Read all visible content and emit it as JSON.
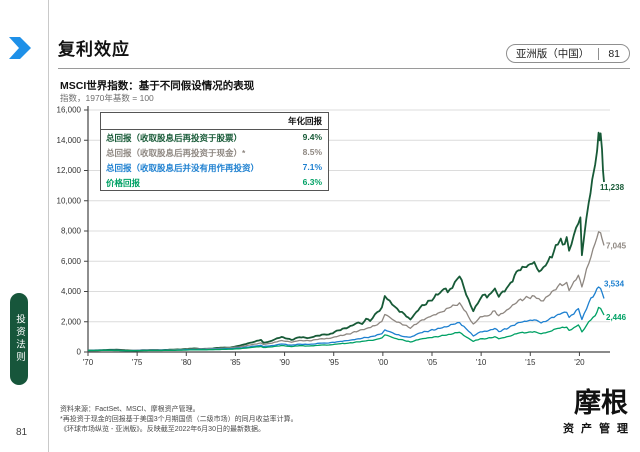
{
  "header": {
    "title": "复利效应",
    "edition": "亚洲版（中国）",
    "page": "81"
  },
  "sidebar": {
    "section_label": "投资法则"
  },
  "page": {
    "number_left": "81"
  },
  "colors": {
    "accent_blue": "#1e90e8",
    "pill_green": "#17563b",
    "grid": "#dcdcdc",
    "axis": "#444444"
  },
  "chart_data": {
    "type": "line",
    "title": "MSCI世界指数：基于不同假设情况的表现",
    "subtitle": "指数，1970年基数 = 100",
    "legend_header": "年化回报",
    "x_range": [
      1970,
      2022.5
    ],
    "y_range": [
      0,
      16000
    ],
    "grid": true,
    "y_ticks": [
      {
        "value": 0,
        "label": "0"
      },
      {
        "value": 2000,
        "label": "2,000"
      },
      {
        "value": 4000,
        "label": "4,000"
      },
      {
        "value": 6000,
        "label": "6,000"
      },
      {
        "value": 8000,
        "label": "8,000"
      },
      {
        "value": 10000,
        "label": "10,000"
      },
      {
        "value": 12000,
        "label": "12,000"
      },
      {
        "value": 14000,
        "label": "14,000"
      },
      {
        "value": 16000,
        "label": "16,000"
      }
    ],
    "x_ticks": [
      {
        "year": 1970,
        "label": "'70"
      },
      {
        "year": 1975,
        "label": "'75"
      },
      {
        "year": 1980,
        "label": "'80"
      },
      {
        "year": 1985,
        "label": "'85"
      },
      {
        "year": 1990,
        "label": "'90"
      },
      {
        "year": 1995,
        "label": "'95"
      },
      {
        "year": 2000,
        "label": "'00"
      },
      {
        "year": 2005,
        "label": "'05"
      },
      {
        "year": 2010,
        "label": "'10"
      },
      {
        "year": 2015,
        "label": "'15"
      },
      {
        "year": 2020,
        "label": "'20"
      }
    ],
    "series": [
      {
        "name": "总回报（收取股息后再投资于股票）",
        "annualized_return": "9.4%",
        "color": "#175a37",
        "end": {
          "label": "11,238",
          "value": 11238,
          "dx": -4,
          "dy": 8
        },
        "points": [
          [
            1970,
            100
          ],
          [
            1971,
            115
          ],
          [
            1972,
            140
          ],
          [
            1972.9,
            155
          ],
          [
            1974,
            110
          ],
          [
            1974.8,
            85
          ],
          [
            1975.5,
            120
          ],
          [
            1976.5,
            132
          ],
          [
            1977.5,
            128
          ],
          [
            1978.5,
            152
          ],
          [
            1979.5,
            175
          ],
          [
            1980.8,
            235
          ],
          [
            1981.5,
            200
          ],
          [
            1982.5,
            228
          ],
          [
            1983.5,
            285
          ],
          [
            1984.5,
            298
          ],
          [
            1985.5,
            430
          ],
          [
            1986.5,
            610
          ],
          [
            1987.6,
            800
          ],
          [
            1987.85,
            620
          ],
          [
            1988.5,
            700
          ],
          [
            1989.7,
            1000
          ],
          [
            1990.7,
            800
          ],
          [
            1991.5,
            980
          ],
          [
            1992.5,
            930
          ],
          [
            1993.8,
            1150
          ],
          [
            1994.5,
            1160
          ],
          [
            1995.5,
            1430
          ],
          [
            1996.5,
            1640
          ],
          [
            1997.5,
            1950
          ],
          [
            1997.9,
            1850
          ],
          [
            1998.3,
            2200
          ],
          [
            1998.7,
            2050
          ],
          [
            1999.2,
            2500
          ],
          [
            1999.9,
            2950
          ],
          [
            2000.2,
            3700
          ],
          [
            2000.7,
            3400
          ],
          [
            2001.2,
            3000
          ],
          [
            2001.7,
            2650
          ],
          [
            2002.2,
            2500
          ],
          [
            2002.8,
            2150
          ],
          [
            2003.8,
            2950
          ],
          [
            2004.8,
            3400
          ],
          [
            2005.8,
            3900
          ],
          [
            2006.4,
            4200
          ],
          [
            2006.6,
            3950
          ],
          [
            2007.8,
            5000
          ],
          [
            2008.7,
            3500
          ],
          [
            2009.2,
            2700
          ],
          [
            2009.9,
            3500
          ],
          [
            2010.4,
            3800
          ],
          [
            2010.6,
            3600
          ],
          [
            2011.4,
            4200
          ],
          [
            2011.8,
            3650
          ],
          [
            2012.8,
            4400
          ],
          [
            2013.8,
            5400
          ],
          [
            2014.8,
            5750
          ],
          [
            2015.4,
            5950
          ],
          [
            2015.7,
            5500
          ],
          [
            2016.1,
            5400
          ],
          [
            2016.8,
            6000
          ],
          [
            2017.8,
            7100
          ],
          [
            2018.1,
            7500
          ],
          [
            2018.3,
            7100
          ],
          [
            2018.7,
            7600
          ],
          [
            2018.95,
            6700
          ],
          [
            2019.9,
            8500
          ],
          [
            2020.1,
            8900
          ],
          [
            2020.25,
            6400
          ],
          [
            2020.7,
            8800
          ],
          [
            2020.95,
            9900
          ],
          [
            2021.3,
            11400
          ],
          [
            2021.6,
            12400
          ],
          [
            2021.8,
            13300
          ],
          [
            2021.95,
            14500
          ],
          [
            2022.05,
            14000
          ],
          [
            2022.15,
            14450
          ],
          [
            2022.3,
            13400
          ],
          [
            2022.4,
            12000
          ],
          [
            2022.5,
            11238
          ]
        ]
      },
      {
        "name": "总回报（收取股息后再投资于现金）*",
        "annualized_return": "8.5%",
        "color": "#8e8781",
        "end": {
          "label": "7,045",
          "value": 7045,
          "dx": 2,
          "dy": 3
        },
        "points": [
          [
            1970,
            100
          ],
          [
            1972,
            120
          ],
          [
            1974,
            100
          ],
          [
            1975.5,
            112
          ],
          [
            1977.5,
            125
          ],
          [
            1979.5,
            162
          ],
          [
            1980.8,
            198
          ],
          [
            1982.5,
            218
          ],
          [
            1984.5,
            282
          ],
          [
            1985.5,
            345
          ],
          [
            1986.5,
            465
          ],
          [
            1987.6,
            600
          ],
          [
            1987.85,
            500
          ],
          [
            1988.5,
            560
          ],
          [
            1989.7,
            760
          ],
          [
            1990.7,
            650
          ],
          [
            1991.5,
            760
          ],
          [
            1992.5,
            740
          ],
          [
            1993.8,
            880
          ],
          [
            1994.5,
            890
          ],
          [
            1995.5,
            1060
          ],
          [
            1996.5,
            1190
          ],
          [
            1997.5,
            1390
          ],
          [
            1998.3,
            1550
          ],
          [
            1999.2,
            1740
          ],
          [
            1999.9,
            2020
          ],
          [
            2000.2,
            2480
          ],
          [
            2000.7,
            2300
          ],
          [
            2001.2,
            2060
          ],
          [
            2002.2,
            1780
          ],
          [
            2002.8,
            1570
          ],
          [
            2003.8,
            2060
          ],
          [
            2004.8,
            2330
          ],
          [
            2005.8,
            2620
          ],
          [
            2007.8,
            3250
          ],
          [
            2008.7,
            2350
          ],
          [
            2009.2,
            1850
          ],
          [
            2009.9,
            2330
          ],
          [
            2010.6,
            2380
          ],
          [
            2011.4,
            2720
          ],
          [
            2011.8,
            2400
          ],
          [
            2012.8,
            2840
          ],
          [
            2013.8,
            3420
          ],
          [
            2014.8,
            3600
          ],
          [
            2015.4,
            3700
          ],
          [
            2016.1,
            3380
          ],
          [
            2016.8,
            3700
          ],
          [
            2017.8,
            4330
          ],
          [
            2018.7,
            4600
          ],
          [
            2018.95,
            4060
          ],
          [
            2019.9,
            5080
          ],
          [
            2020.25,
            4300
          ],
          [
            2020.95,
            5850
          ],
          [
            2021.6,
            7200
          ],
          [
            2021.95,
            7950
          ],
          [
            2022.15,
            7880
          ],
          [
            2022.3,
            7500
          ],
          [
            2022.5,
            7045
          ]
        ]
      },
      {
        "name": "总回报（收取股息后并没有用作再投资）",
        "annualized_return": "7.1%",
        "color": "#1e80d0",
        "end": {
          "label": "3,534",
          "value": 3534,
          "dx": 0,
          "dy": -12
        },
        "points": [
          [
            1970,
            100
          ],
          [
            1972,
            115
          ],
          [
            1974,
            92
          ],
          [
            1975.5,
            103
          ],
          [
            1977.5,
            112
          ],
          [
            1979.5,
            140
          ],
          [
            1980.8,
            164
          ],
          [
            1982.5,
            178
          ],
          [
            1984.5,
            224
          ],
          [
            1985.5,
            265
          ],
          [
            1986.5,
            352
          ],
          [
            1987.6,
            440
          ],
          [
            1987.85,
            360
          ],
          [
            1988.5,
            400
          ],
          [
            1989.7,
            530
          ],
          [
            1990.7,
            450
          ],
          [
            1991.5,
            520
          ],
          [
            1992.5,
            500
          ],
          [
            1993.8,
            590
          ],
          [
            1994.5,
            595
          ],
          [
            1995.5,
            690
          ],
          [
            1996.5,
            760
          ],
          [
            1997.5,
            870
          ],
          [
            1998.3,
            960
          ],
          [
            1999.2,
            1060
          ],
          [
            1999.9,
            1210
          ],
          [
            2000.2,
            1460
          ],
          [
            2000.7,
            1350
          ],
          [
            2001.2,
            1190
          ],
          [
            2002.2,
            1010
          ],
          [
            2002.8,
            980
          ],
          [
            2003.8,
            1260
          ],
          [
            2004.8,
            1420
          ],
          [
            2005.8,
            1560
          ],
          [
            2007.8,
            1950
          ],
          [
            2008.7,
            1380
          ],
          [
            2009.2,
            1060
          ],
          [
            2009.9,
            1330
          ],
          [
            2010.6,
            1370
          ],
          [
            2011.4,
            1560
          ],
          [
            2011.8,
            1350
          ],
          [
            2012.8,
            1600
          ],
          [
            2013.8,
            1950
          ],
          [
            2014.8,
            2060
          ],
          [
            2015.4,
            2120
          ],
          [
            2016.1,
            1920
          ],
          [
            2016.8,
            2100
          ],
          [
            2017.8,
            2480
          ],
          [
            2018.7,
            2620
          ],
          [
            2018.95,
            2290
          ],
          [
            2019.9,
            2870
          ],
          [
            2020.25,
            2150
          ],
          [
            2020.95,
            3250
          ],
          [
            2021.6,
            3900
          ],
          [
            2021.95,
            4300
          ],
          [
            2022.15,
            4200
          ],
          [
            2022.3,
            3950
          ],
          [
            2022.5,
            3534
          ]
        ]
      },
      {
        "name": "价格回报",
        "annualized_return": "6.3%",
        "color": "#00a165",
        "end": {
          "label": "2,446",
          "value": 2446,
          "dx": 2,
          "dy": 5
        },
        "points": [
          [
            1970,
            100
          ],
          [
            1972,
            112
          ],
          [
            1974,
            85
          ],
          [
            1975.5,
            95
          ],
          [
            1977.5,
            100
          ],
          [
            1979.5,
            122
          ],
          [
            1980.8,
            142
          ],
          [
            1982.5,
            150
          ],
          [
            1984.5,
            186
          ],
          [
            1985.5,
            220
          ],
          [
            1986.5,
            292
          ],
          [
            1987.6,
            365
          ],
          [
            1987.85,
            295
          ],
          [
            1988.5,
            330
          ],
          [
            1989.7,
            430
          ],
          [
            1990.7,
            360
          ],
          [
            1991.5,
            415
          ],
          [
            1992.5,
            395
          ],
          [
            1993.8,
            465
          ],
          [
            1994.5,
            465
          ],
          [
            1995.5,
            535
          ],
          [
            1996.5,
            590
          ],
          [
            1997.5,
            670
          ],
          [
            1998.3,
            735
          ],
          [
            1999.2,
            810
          ],
          [
            1999.9,
            930
          ],
          [
            2000.2,
            1130
          ],
          [
            2000.7,
            1040
          ],
          [
            2001.2,
            905
          ],
          [
            2002.2,
            760
          ],
          [
            2002.8,
            660
          ],
          [
            2003.8,
            850
          ],
          [
            2004.8,
            950
          ],
          [
            2005.8,
            1040
          ],
          [
            2007.8,
            1300
          ],
          [
            2008.7,
            910
          ],
          [
            2009.2,
            700
          ],
          [
            2009.9,
            870
          ],
          [
            2010.6,
            890
          ],
          [
            2011.4,
            1010
          ],
          [
            2011.8,
            870
          ],
          [
            2012.8,
            1030
          ],
          [
            2013.8,
            1250
          ],
          [
            2014.8,
            1310
          ],
          [
            2015.4,
            1350
          ],
          [
            2016.1,
            1210
          ],
          [
            2016.8,
            1320
          ],
          [
            2017.8,
            1560
          ],
          [
            2018.7,
            1640
          ],
          [
            2018.95,
            1430
          ],
          [
            2019.9,
            1790
          ],
          [
            2020.25,
            1330
          ],
          [
            2020.95,
            2010
          ],
          [
            2021.6,
            2400
          ],
          [
            2021.95,
            2950
          ],
          [
            2022.15,
            2880
          ],
          [
            2022.3,
            2700
          ],
          [
            2022.5,
            2446
          ]
        ]
      }
    ]
  },
  "footer": {
    "source_line1": "资料来源：FactSet、MSCI、摩根资产管理。",
    "source_line2": "*再投资于现金的回报基于美国3个月期国债（二级市场）的同月收益率计算。",
    "source_line3": "《环球市场纵览 ­- 亚洲版》。反映截至2022年6月30日的最新数据。",
    "logo_main": "摩根",
    "logo_sub": "资产管理"
  }
}
